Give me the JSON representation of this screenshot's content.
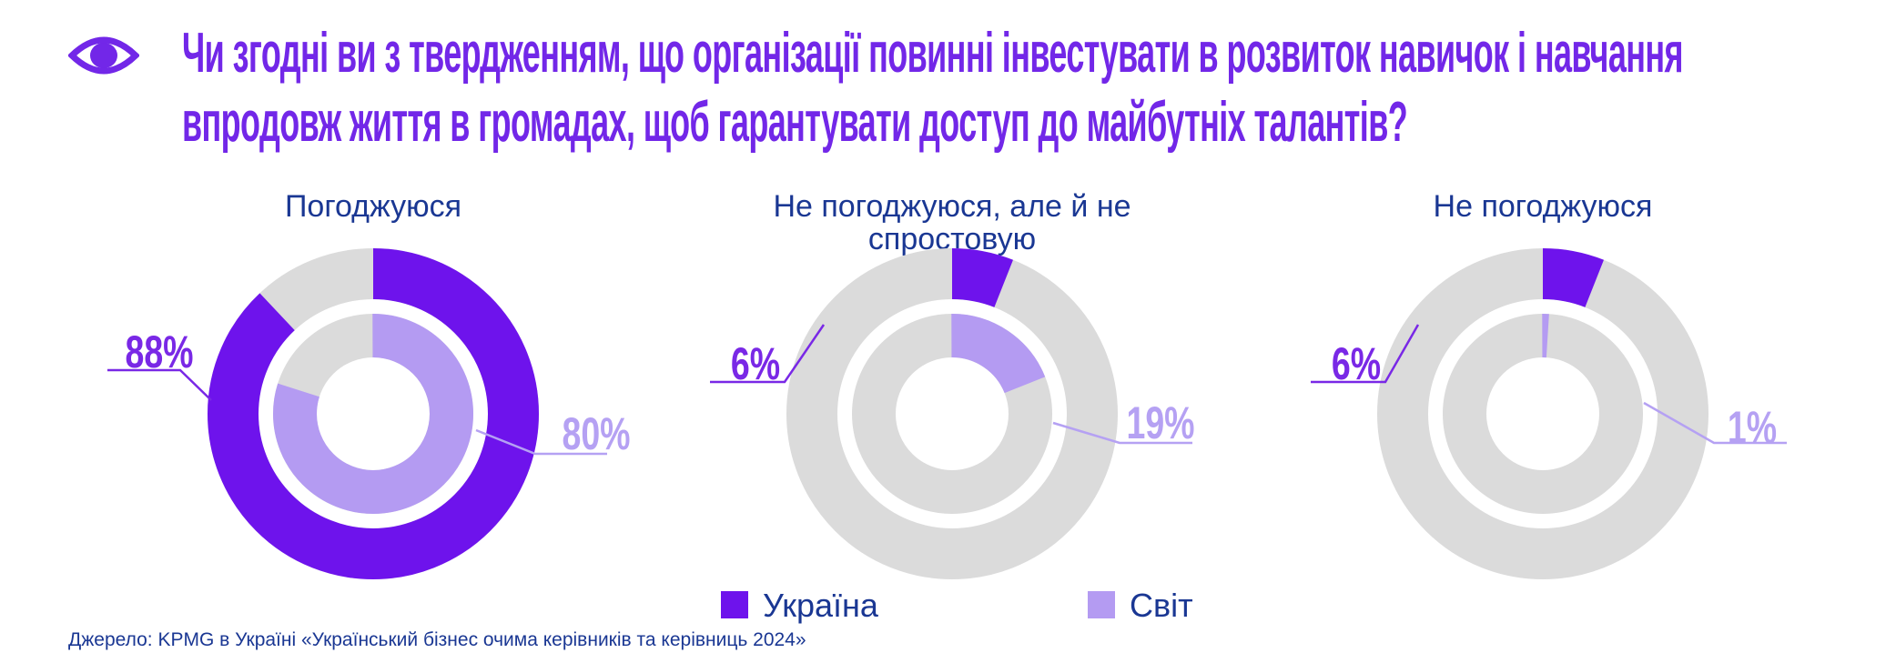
{
  "header": {
    "icon": "eye-icon",
    "question_line1": "Чи згодні ви з твердженням, що організації повинні інвестувати в розвиток навичок і навчання",
    "question_line2": "впродовж життя в громадах, щоб гарантувати доступ до майбутніх талантів?"
  },
  "chart_data": {
    "type": "donut",
    "title": "Чи згодні ви з твердженням, що організації повинні інвестувати в розвиток навичок і навчання впродовж життя в громадах, щоб гарантувати доступ до майбутніх талантів?",
    "categories": [
      "Погоджуюся",
      "Не погоджуюся, але й не спростовую",
      "Не погоджуюся"
    ],
    "series": [
      {
        "name": "Україна",
        "color": "#6E13EC",
        "values": [
          88,
          6,
          6
        ]
      },
      {
        "name": "Світ",
        "color": "#B49BF2",
        "values": [
          80,
          19,
          1
        ]
      }
    ],
    "value_labels": [
      [
        "88%",
        "80%"
      ],
      [
        "6%",
        "19%"
      ],
      [
        "6%",
        "1%"
      ]
    ],
    "legend_position": "bottom",
    "ring_track_color": "#DBDBDB",
    "start_angle_deg": 0,
    "direction": "clockwise"
  },
  "legend": [
    {
      "label": "Україна",
      "color": "#6E13EC"
    },
    {
      "label": "Світ",
      "color": "#B49BF2"
    }
  ],
  "source": {
    "text": "Джерело: KPMG в Україні «Український бізнес очима керівників та керівниць 2024»"
  },
  "colors": {
    "title_purple": "#7227E8",
    "label_purple": "#7928E6",
    "label_light_purple": "#B5A1F3",
    "ukraine": "#6E13EC",
    "world": "#B49BF2",
    "track": "#DBDBDB",
    "navy": "#1A3793"
  }
}
